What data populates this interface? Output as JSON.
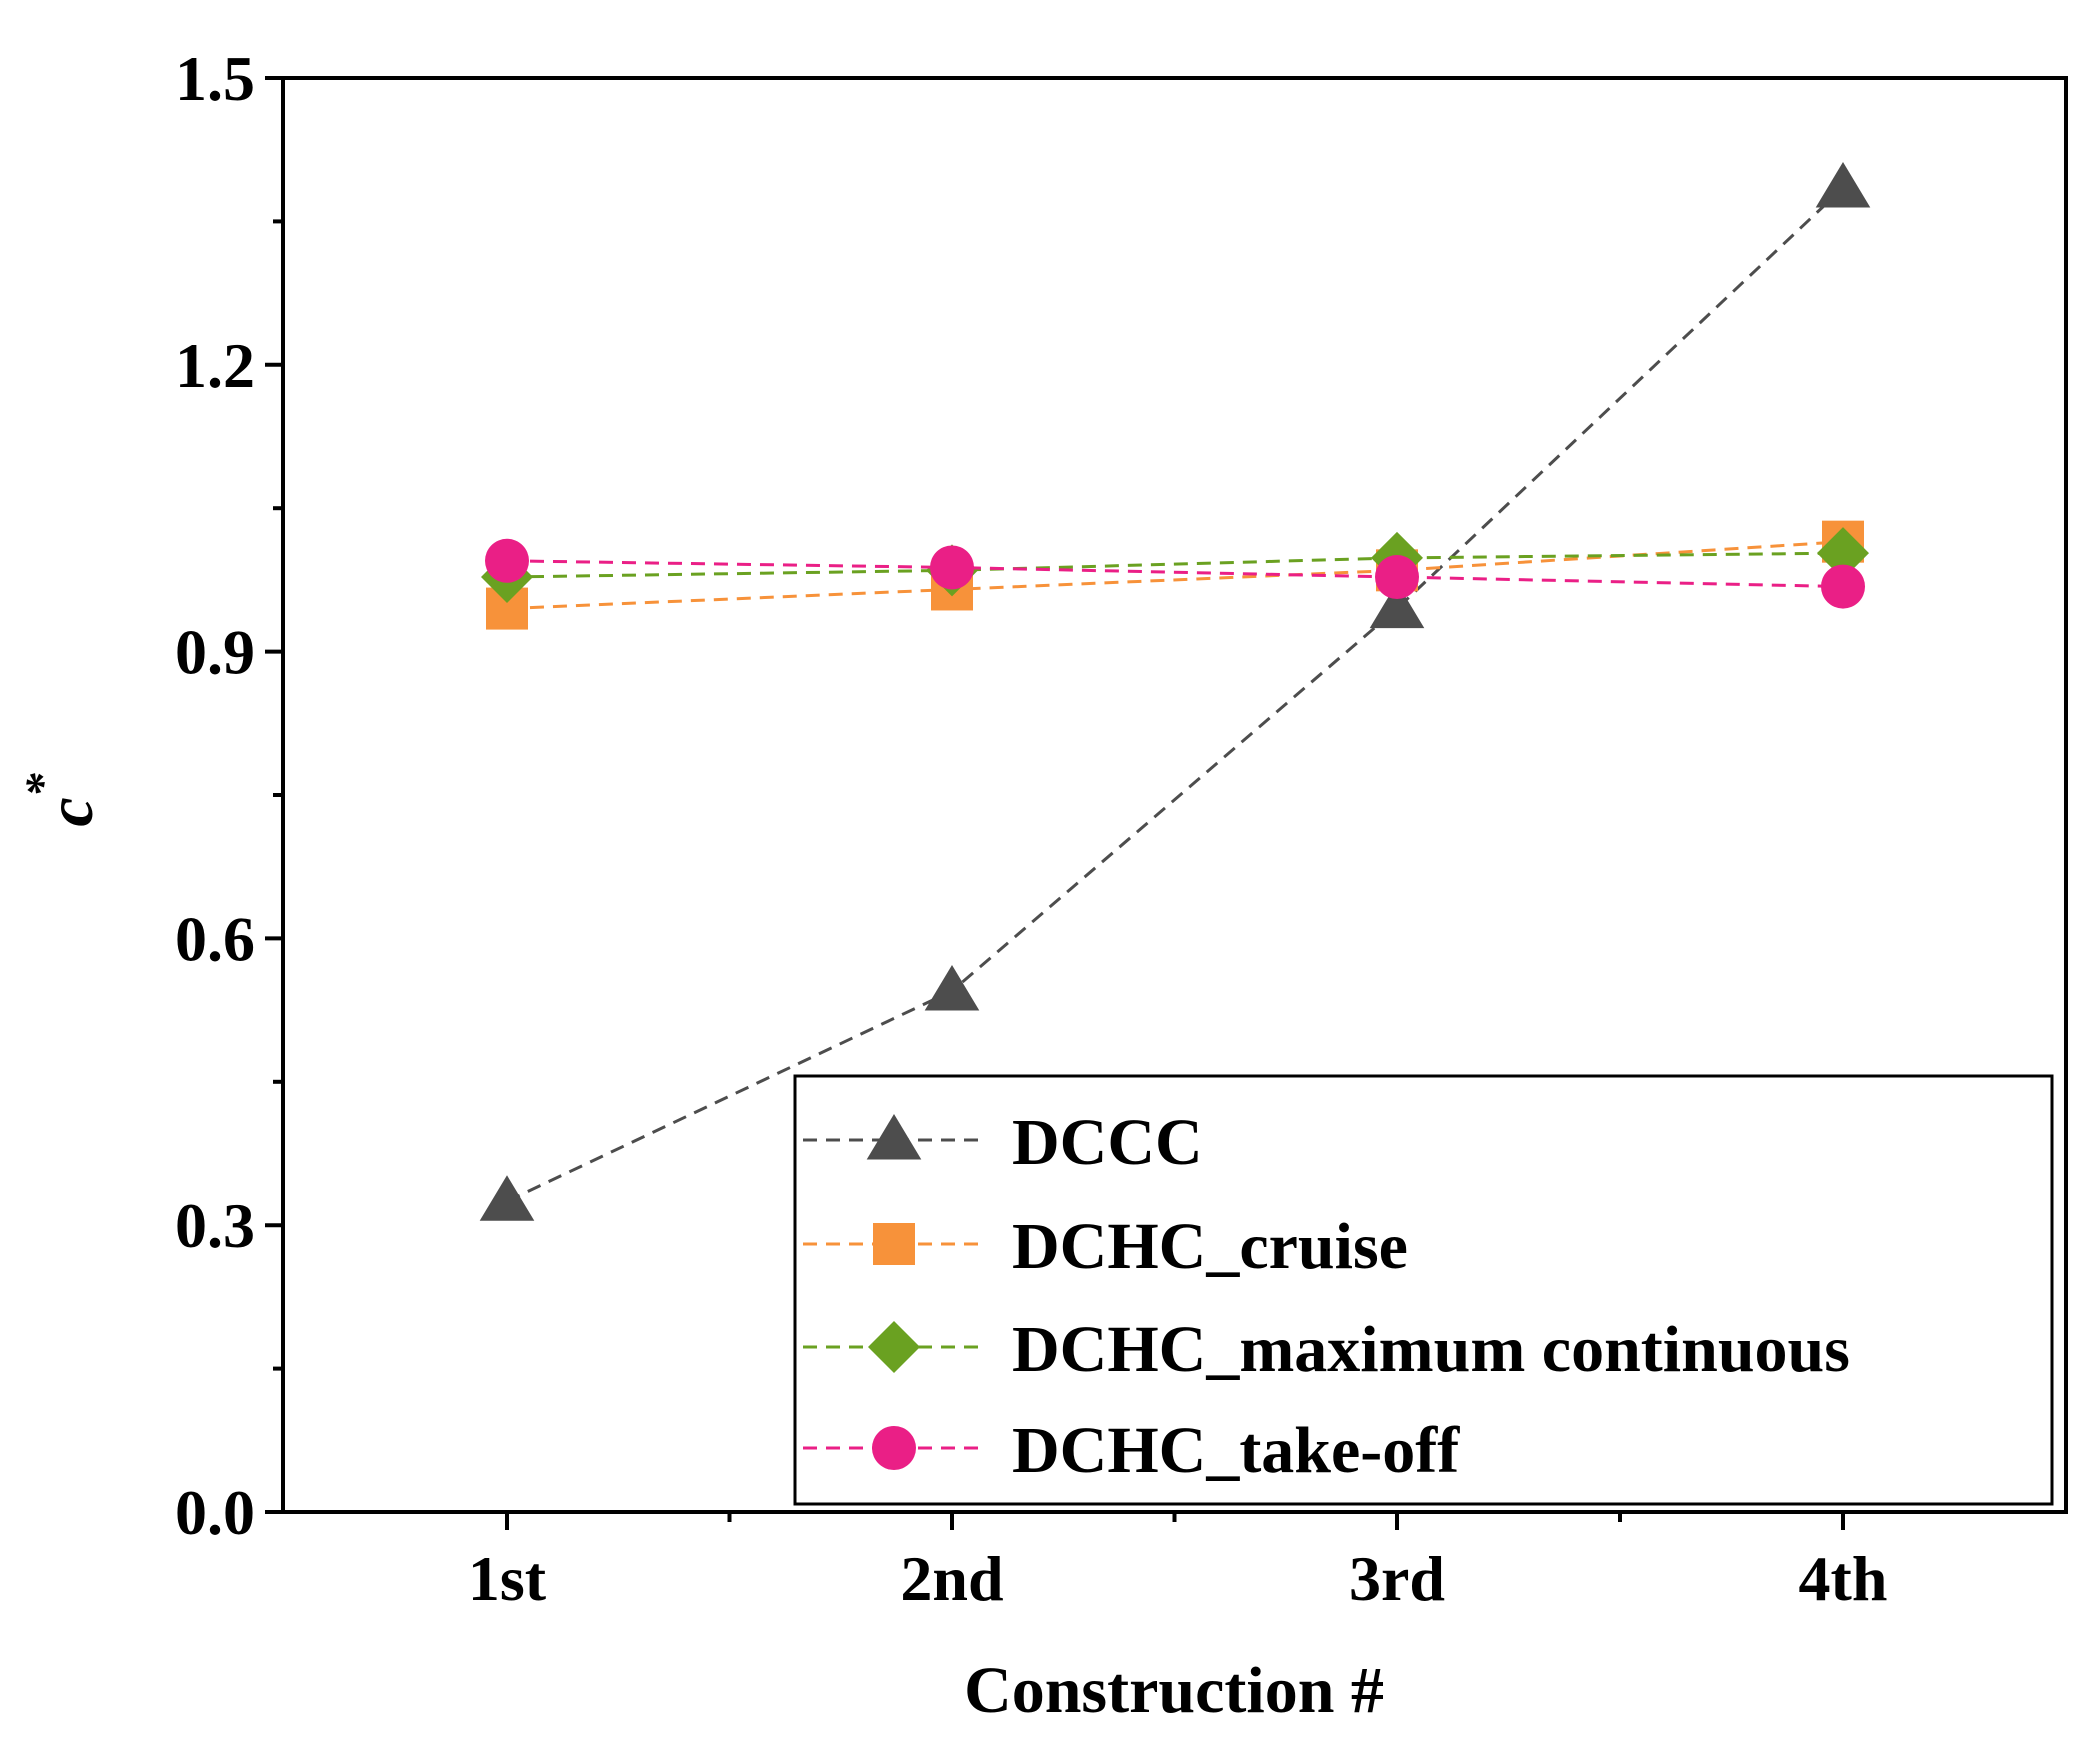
{
  "chart_data": {
    "type": "line",
    "title": "",
    "xlabel": "Construction #",
    "ylabel_main": "c",
    "ylabel_sup": "*",
    "categories": [
      "1st",
      "2nd",
      "3rd",
      "4th"
    ],
    "ylim": [
      0.0,
      1.5
    ],
    "yticks": [
      0.0,
      0.3,
      0.6,
      0.9,
      1.2,
      1.5
    ],
    "ytick_labels": [
      "0.0",
      "0.3",
      "0.6",
      "0.9",
      "1.2",
      "1.5"
    ],
    "grid": false,
    "legend_position": "bottom-right",
    "series": [
      {
        "name": "DCCC",
        "marker": "triangle",
        "color": "#4d4d4d",
        "values": [
          0.325,
          0.545,
          0.945,
          1.385
        ]
      },
      {
        "name": "DCHC_cruise",
        "marker": "square",
        "color": "#f7923a",
        "values": [
          0.945,
          0.965,
          0.985,
          1.015
        ]
      },
      {
        "name": "DCHC_maximum continuous",
        "marker": "diamond",
        "color": "#6aa121",
        "values": [
          0.978,
          0.985,
          0.998,
          1.003
        ]
      },
      {
        "name": "DCHC_take-off",
        "marker": "circle",
        "color": "#ea1f86",
        "values": [
          0.995,
          0.988,
          0.978,
          0.968
        ]
      }
    ]
  }
}
